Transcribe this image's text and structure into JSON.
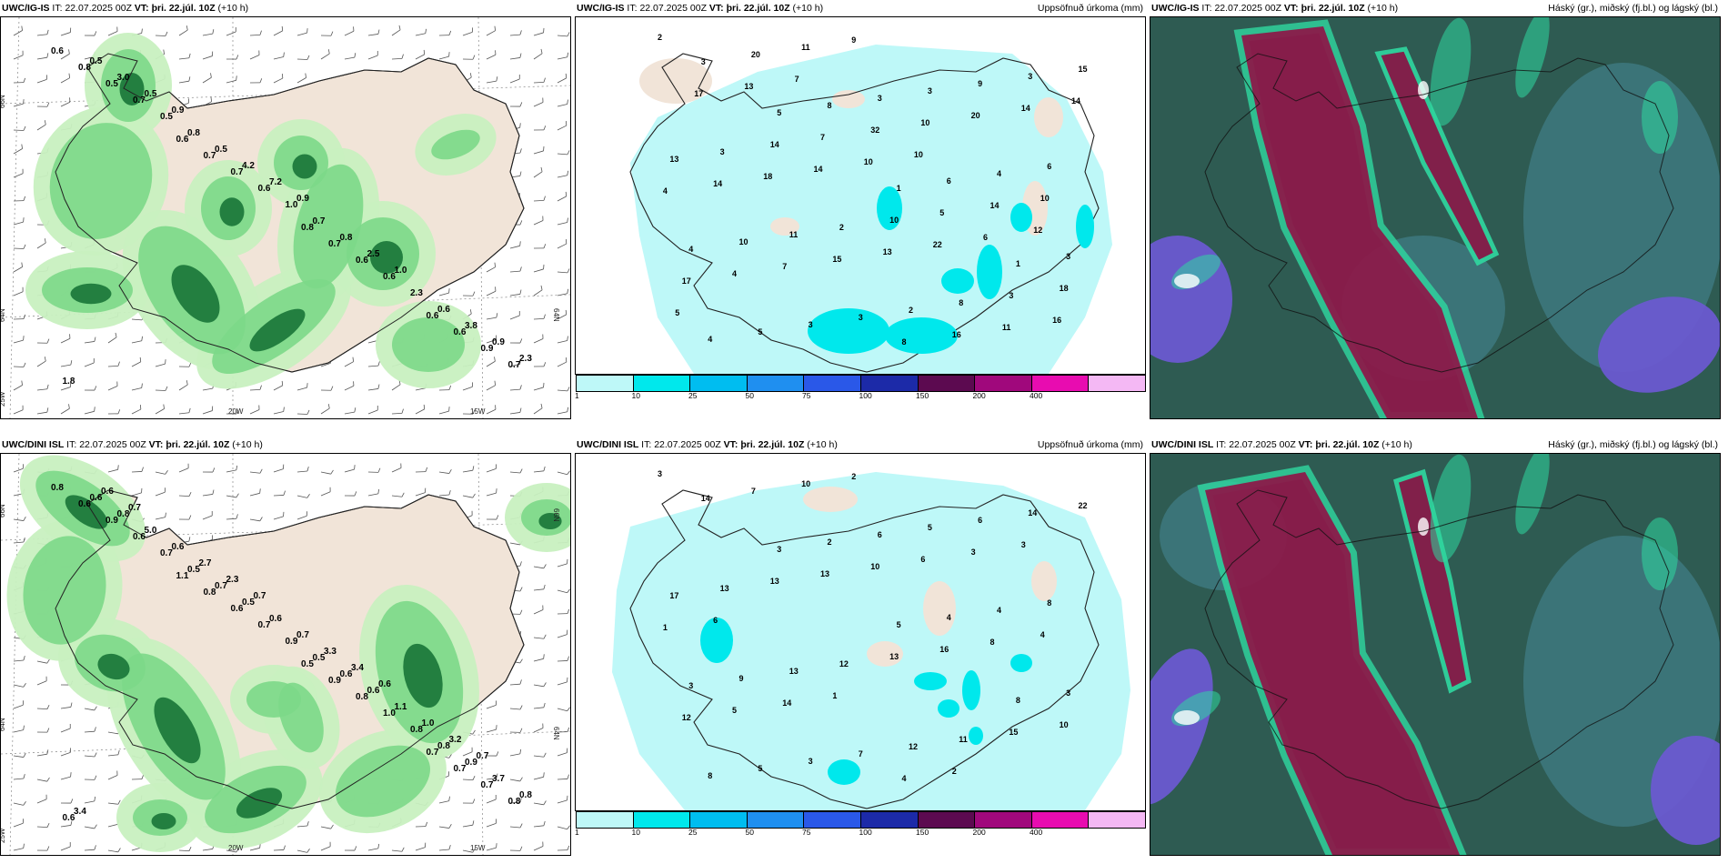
{
  "panels": [
    {
      "id": "ig-wind",
      "model": "UWC/IG-IS",
      "it_label": "IT:",
      "it_value": "22.07.2025 00Z",
      "vt_label": "VT:",
      "vt_value": "þri. 22.júl. 10Z",
      "lead": "(+10 h)",
      "title_right": "",
      "axis_labels": [
        "66N",
        "64N",
        "25W",
        "20W",
        "15W",
        "64N"
      ],
      "values": [
        "0.6",
        "0.6",
        "0.8",
        "0.6",
        "0.8",
        "0.7",
        "0.7",
        "0.6",
        "0.5",
        "0.7",
        "0.6",
        "0.9",
        "0.7",
        "0.6",
        "0.6",
        "0.7",
        "0.5",
        "1.0",
        "2.3",
        "1.8",
        "0.8",
        "0.7",
        "0.6",
        "0.5",
        "0.5",
        "0.8",
        "3.8",
        "3.0",
        "4.2",
        "2.5",
        "0.9",
        "0.5",
        "7.2",
        "1.0",
        "2.3",
        "0.9",
        "0.9"
      ]
    },
    {
      "id": "ig-precip",
      "model": "UWC/IG-IS",
      "it_label": "IT:",
      "it_value": "22.07.2025 00Z",
      "vt_label": "VT:",
      "vt_value": "þri. 22.júl. 10Z",
      "lead": "(+10 h)",
      "title_right": "Uppsöfnuð úrkoma (mm)",
      "values": [
        "2",
        "5",
        "1",
        "1",
        "4",
        "8",
        "6",
        "3",
        "5",
        "3",
        "4",
        "4",
        "3",
        "3",
        "6",
        "10",
        "3",
        "9",
        "13",
        "11",
        "2",
        "3",
        "3",
        "2",
        "8",
        "15",
        "14",
        "10",
        "3",
        "3",
        "7",
        "5",
        "18",
        "20",
        "32",
        "14",
        "17",
        "11",
        "10",
        "10",
        "4",
        "9",
        "20",
        "4",
        "7",
        "8",
        "14",
        "14",
        "15",
        "16",
        "14",
        "18",
        "13",
        "11",
        "17",
        "14",
        "22",
        "16",
        "13",
        "10",
        "6",
        "5",
        "7",
        "10",
        "12"
      ],
      "legend": [
        "1",
        "10",
        "25",
        "50",
        "75",
        "100",
        "150",
        "200",
        "400"
      ],
      "legend_colors": [
        "#bef8f8",
        "#00e8ec",
        "#00bdf0",
        "#1f8ff0",
        "#2a58e8",
        "#1c2aa8",
        "#5c0a50",
        "#a0087c",
        "#e80cb0",
        "#f4b8f4"
      ]
    },
    {
      "id": "ig-cloud",
      "model": "UWC/IG-IS",
      "it_label": "IT:",
      "it_value": "22.07.2025 00Z",
      "vt_label": "VT:",
      "vt_value": "þri. 22.júl. 10Z",
      "lead": "(+10 h)",
      "title_right": "Háský (gr.), miðský (fj.bl.) og lágský (bl.)"
    },
    {
      "id": "dini-wind",
      "model": "UWC/DINI ISL",
      "it_label": "IT:",
      "it_value": "22.07.2025 00Z",
      "vt_label": "VT:",
      "vt_value": "þri. 22.júl. 10Z",
      "lead": "(+10 h)",
      "title_right": "",
      "axis_labels": [
        "66N",
        "64N",
        "25W",
        "20W",
        "15W",
        "66N",
        "64N"
      ],
      "values": [
        "0.8",
        "1.1",
        "0.5",
        "0.7",
        "0.6",
        "0.8",
        "0.9",
        "0.7",
        "0.9",
        "0.6",
        "0.8",
        "0.7",
        "0.6",
        "0.7",
        "1.0",
        "0.8",
        "0.7",
        "0.9",
        "0.8",
        "0.6",
        "0.5",
        "0.5",
        "0.8",
        "0.6",
        "0.7",
        "0.6",
        "0.9",
        "0.8",
        "0.5",
        "0.6",
        "3.7",
        "5.0",
        "0.6",
        "1.1",
        "0.8",
        "0.6",
        "0.7",
        "1.0",
        "3.4",
        "2.7",
        "3.3",
        "3.2",
        "0.6",
        "2.3",
        "3.4",
        "0.7",
        "0.7",
        "0.7",
        "0.6"
      ]
    },
    {
      "id": "dini-precip",
      "model": "UWC/DINI ISL",
      "it_label": "IT:",
      "it_value": "22.07.2025 00Z",
      "vt_label": "VT:",
      "vt_value": "þri. 22.júl. 10Z",
      "lead": "(+10 h)",
      "title_right": "Uppsöfnuð úrkoma (mm)",
      "values": [
        "3",
        "3",
        "5",
        "8",
        "8",
        "2",
        "4",
        "3",
        "5",
        "6",
        "4",
        "3",
        "3",
        "5",
        "8",
        "9",
        "7",
        "6",
        "17",
        "13",
        "12",
        "14",
        "13",
        "12",
        "11",
        "22",
        "13",
        "13",
        "15",
        "14",
        "13",
        "16",
        "10",
        "7",
        "10",
        "8",
        "12",
        "10",
        "6",
        "4",
        "5",
        "2",
        "3",
        "1",
        "14",
        "4",
        "3",
        "6",
        "1",
        "2"
      ],
      "legend": [
        "1",
        "10",
        "25",
        "50",
        "75",
        "100",
        "150",
        "200",
        "400"
      ],
      "legend_colors": [
        "#bef8f8",
        "#00e8ec",
        "#00bdf0",
        "#1f8ff0",
        "#2a58e8",
        "#1c2aa8",
        "#5c0a50",
        "#a0087c",
        "#e80cb0",
        "#f4b8f4"
      ]
    },
    {
      "id": "dini-cloud",
      "model": "UWC/DINI ISL",
      "it_label": "IT:",
      "it_value": "22.07.2025 00Z",
      "vt_label": "VT:",
      "vt_value": "þri. 22.júl. 10Z",
      "lead": "(+10 h)",
      "title_right": "Háský (gr.), miðský (fj.bl.) og lágský (bl.)"
    }
  ],
  "colors": {
    "land": "#f1e4d8",
    "precip_light": "#bef8f8",
    "precip_med": "#00e8ec",
    "green_light": "#c8f0c0",
    "green_med": "#7cd888",
    "green_dark": "#1e7a3c",
    "cloud_base": "#2e5b52",
    "cloud_high": "#8b1a4a",
    "cloud_edge": "#30d8a0",
    "cloud_low": "#6a5ad0"
  }
}
